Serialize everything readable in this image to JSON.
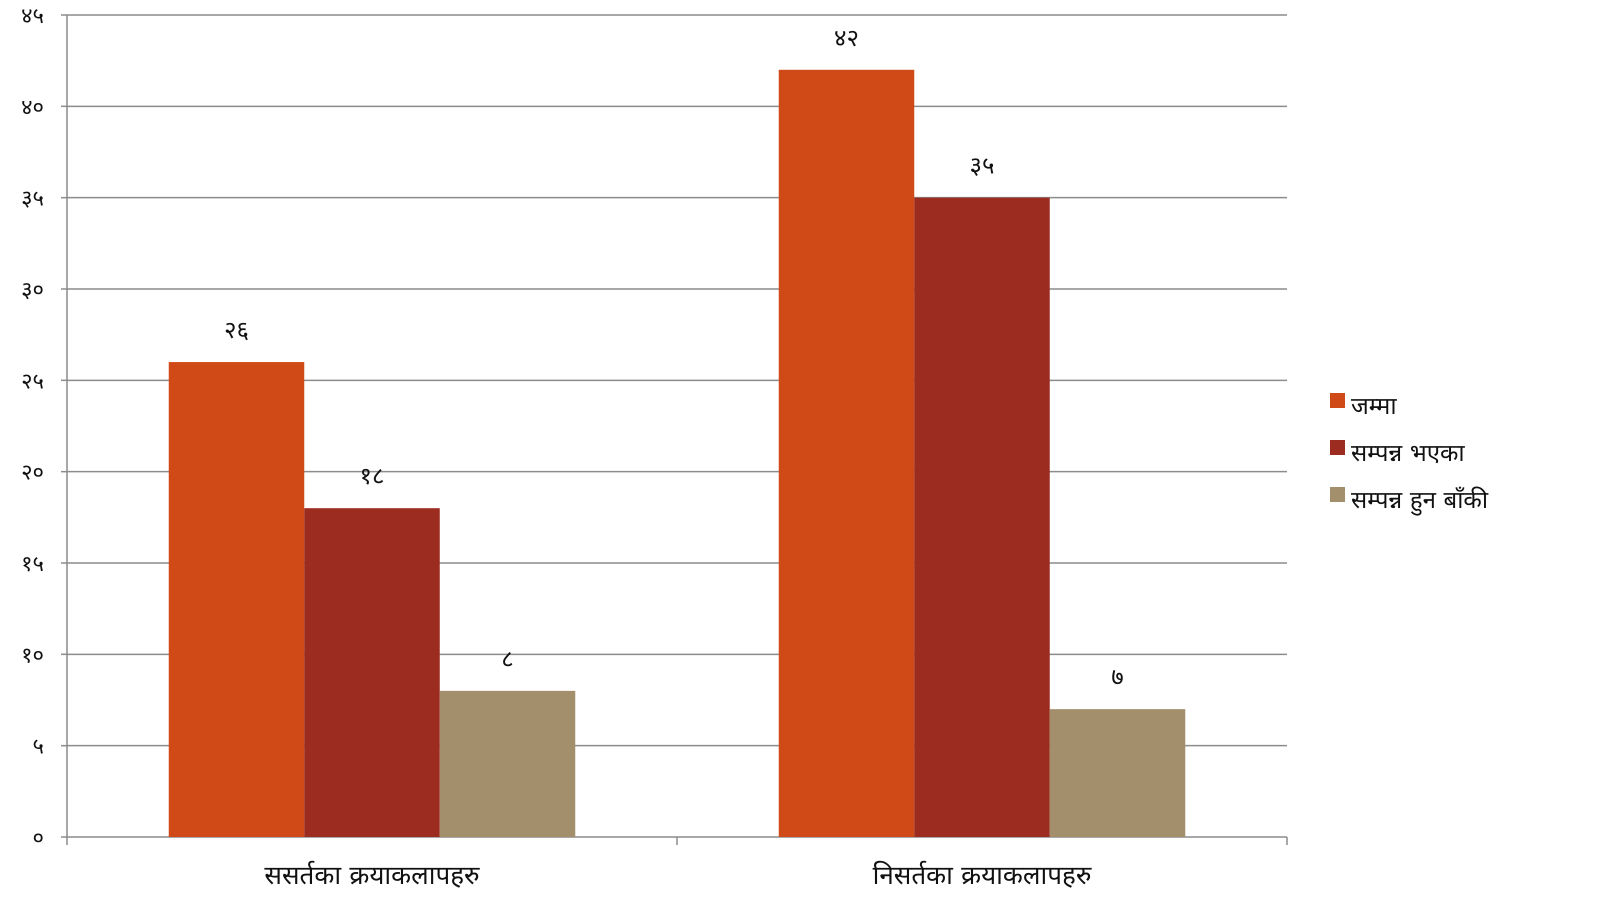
{
  "chart_data": {
    "type": "bar",
    "categories": [
      "ससर्तका  क्रयाकलापहरु",
      "निसर्तका  क्रयाकलापहरु"
    ],
    "series": [
      {
        "name": "जम्मा",
        "values": [
          26,
          42
        ],
        "labels": [
          "२६",
          "४२"
        ],
        "color": "#D04A17"
      },
      {
        "name": "सम्पन्न भएका",
        "values": [
          18,
          35
        ],
        "labels": [
          "१८",
          "३५"
        ],
        "color": "#9B2C1F"
      },
      {
        "name": "सम्पन्न हुन बाँकी",
        "values": [
          8,
          7
        ],
        "labels": [
          "८",
          "७"
        ],
        "color": "#A48F6D"
      }
    ],
    "ylim": [
      0,
      45
    ],
    "yticks": [
      0,
      5,
      10,
      15,
      20,
      25,
      30,
      35,
      40,
      45
    ],
    "ytick_labels": [
      "०",
      "५",
      "१०",
      "१५",
      "२०",
      "२५",
      "३०",
      "३५",
      "४०",
      "४५"
    ],
    "title": "",
    "xlabel": "",
    "ylabel": "",
    "grid": true,
    "legend_position": "right",
    "gridline_color": "#8C8C8C",
    "axis_color": "#8C8C8C"
  }
}
